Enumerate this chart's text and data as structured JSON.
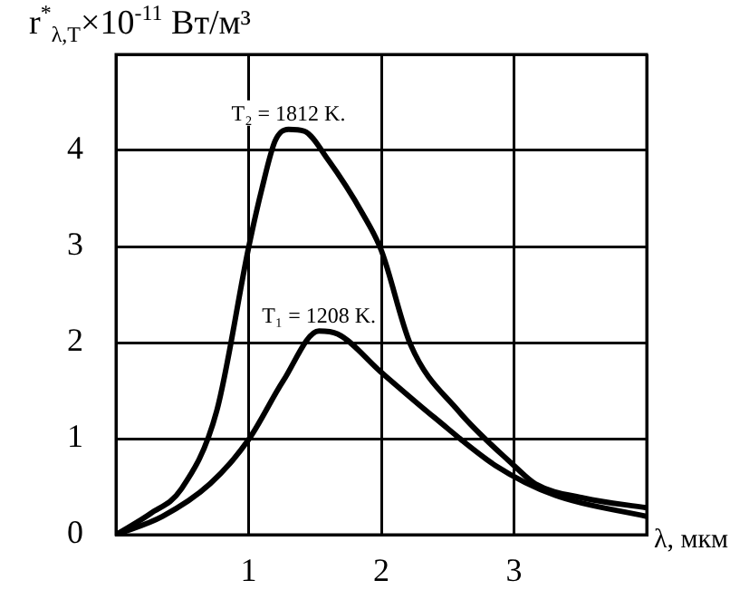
{
  "chart_data": {
    "type": "line",
    "ylabel": "r$^{*}$$_{λ,T}$×10$^{-11}$ Вт/м³",
    "xlabel": "λ, мкм",
    "xlim": [
      0,
      4
    ],
    "xticks": [
      {
        "value": 0,
        "label": null
      },
      1,
      2,
      3,
      {
        "value": 4,
        "label": null
      }
    ],
    "ylim": [
      0,
      5
    ],
    "yticks": [
      0,
      1,
      2,
      3,
      4,
      {
        "value": 5,
        "label": null
      }
    ],
    "grid": true,
    "series": [
      {
        "name": "T₂ = 1812 K.",
        "color": "#000000",
        "x": [
          0,
          0.26,
          0.49,
          0.76,
          1.0,
          1.1,
          1.2,
          1.3,
          1.42,
          1.6,
          1.86,
          2.0,
          2.22,
          2.58,
          3.0,
          3.16,
          3.53,
          4.0
        ],
        "values": [
          0,
          0.22,
          0.47,
          1.29,
          2.99,
          3.6,
          4.1,
          4.22,
          4.2,
          3.9,
          3.34,
          2.96,
          1.98,
          1.29,
          0.72,
          0.53,
          0.38,
          0.28
        ]
      },
      {
        "name": "T₁ = 1208 K.",
        "color": "#000000",
        "x": [
          0,
          0.35,
          0.71,
          1.0,
          1.26,
          1.53,
          1.67,
          2.0,
          2.4,
          2.86,
          3.31,
          4.0
        ],
        "values": [
          0,
          0.19,
          0.53,
          0.99,
          1.6,
          2.12,
          2.09,
          1.69,
          1.22,
          0.72,
          0.41,
          0.19
        ]
      }
    ]
  }
}
